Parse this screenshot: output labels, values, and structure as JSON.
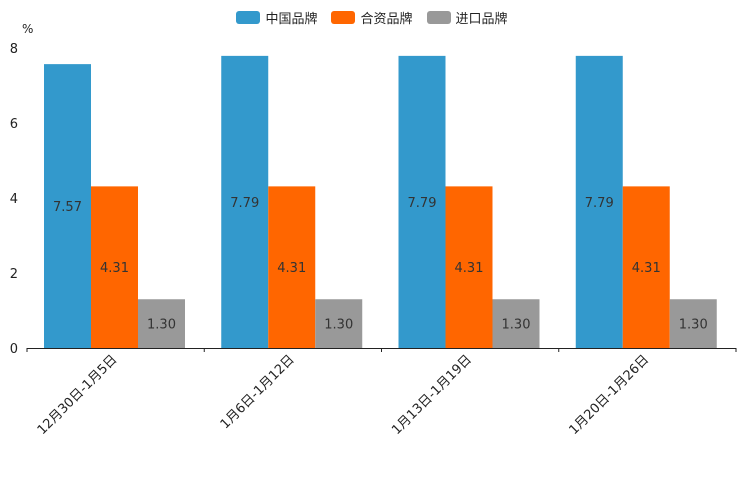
{
  "chart_data": {
    "type": "bar",
    "title": "",
    "unit_label": "%",
    "xlabel": "",
    "ylabel": "",
    "ylim": [
      0,
      8
    ],
    "yticks": [
      0,
      2,
      4,
      6,
      8
    ],
    "categories": [
      "12月30日-1月5日",
      "1月6日-1月12日",
      "1月13日-1月19日",
      "1月20日-1月26日"
    ],
    "series": [
      {
        "name": "中国品牌",
        "color": "#3399cc",
        "values": [
          7.57,
          7.79,
          7.79,
          7.79
        ],
        "labels": [
          "7.57",
          "7.79",
          "7.79",
          "7.79"
        ]
      },
      {
        "name": "合资品牌",
        "color": "#ff6600",
        "values": [
          4.31,
          4.31,
          4.31,
          4.31
        ],
        "labels": [
          "4.31",
          "4.31",
          "4.31",
          "4.31"
        ]
      },
      {
        "name": "进口品牌",
        "color": "#999999",
        "values": [
          1.3,
          1.3,
          1.3,
          1.3
        ],
        "labels": [
          "1.30",
          "1.30",
          "1.30",
          "1.30"
        ]
      }
    ],
    "legend_position": "top-center",
    "grid": false
  }
}
